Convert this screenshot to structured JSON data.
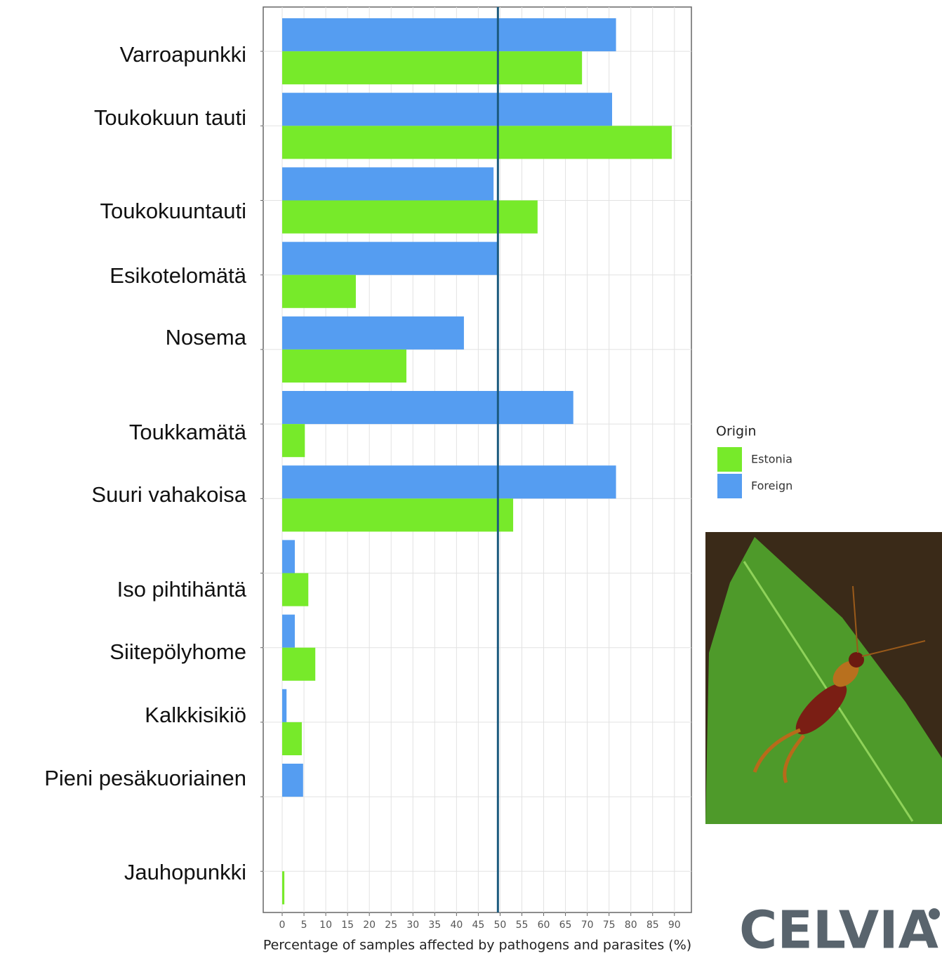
{
  "chart_data": {
    "type": "bar",
    "orientation": "horizontal",
    "x_label": "Percentage of samples affected by pathogens and parasites (%)",
    "categories": [
      "Varroapunkki",
      "Toukokuun tauti",
      "Toukokuuntauti",
      "Esikotelomätä",
      "Nosema",
      "Toukkamätä",
      "Suuri vahakoisa",
      "Iso pihtihäntä",
      "Siitepölyhome",
      "Kalkkisikiö",
      "Pieni pesäkuoriainen",
      "Jauhopunkki"
    ],
    "legend_title": "Origin",
    "series": [
      {
        "name": "Estonia",
        "color": "#77ea2a",
        "values": [
          68.8,
          89.4,
          58.6,
          16.9,
          28.5,
          5.2,
          53,
          6.0,
          7.6,
          4.5,
          null,
          0.5
        ]
      },
      {
        "name": "Foreign",
        "color": "#559df1",
        "values": [
          76.6,
          75.7,
          48.5,
          49.4,
          41.7,
          66.8,
          76.6,
          2.9,
          2.9,
          1.0,
          4.8,
          null
        ]
      }
    ],
    "xlim": [
      -4.35,
      93.9
    ],
    "xticks": [
      0,
      5,
      10,
      15,
      20,
      25,
      30,
      35,
      40,
      45,
      50,
      55,
      60,
      65,
      70,
      75,
      80,
      85,
      90
    ],
    "reference_line": 49.5,
    "grid": true,
    "legend_position": "right",
    "logo": "CELVIA"
  }
}
